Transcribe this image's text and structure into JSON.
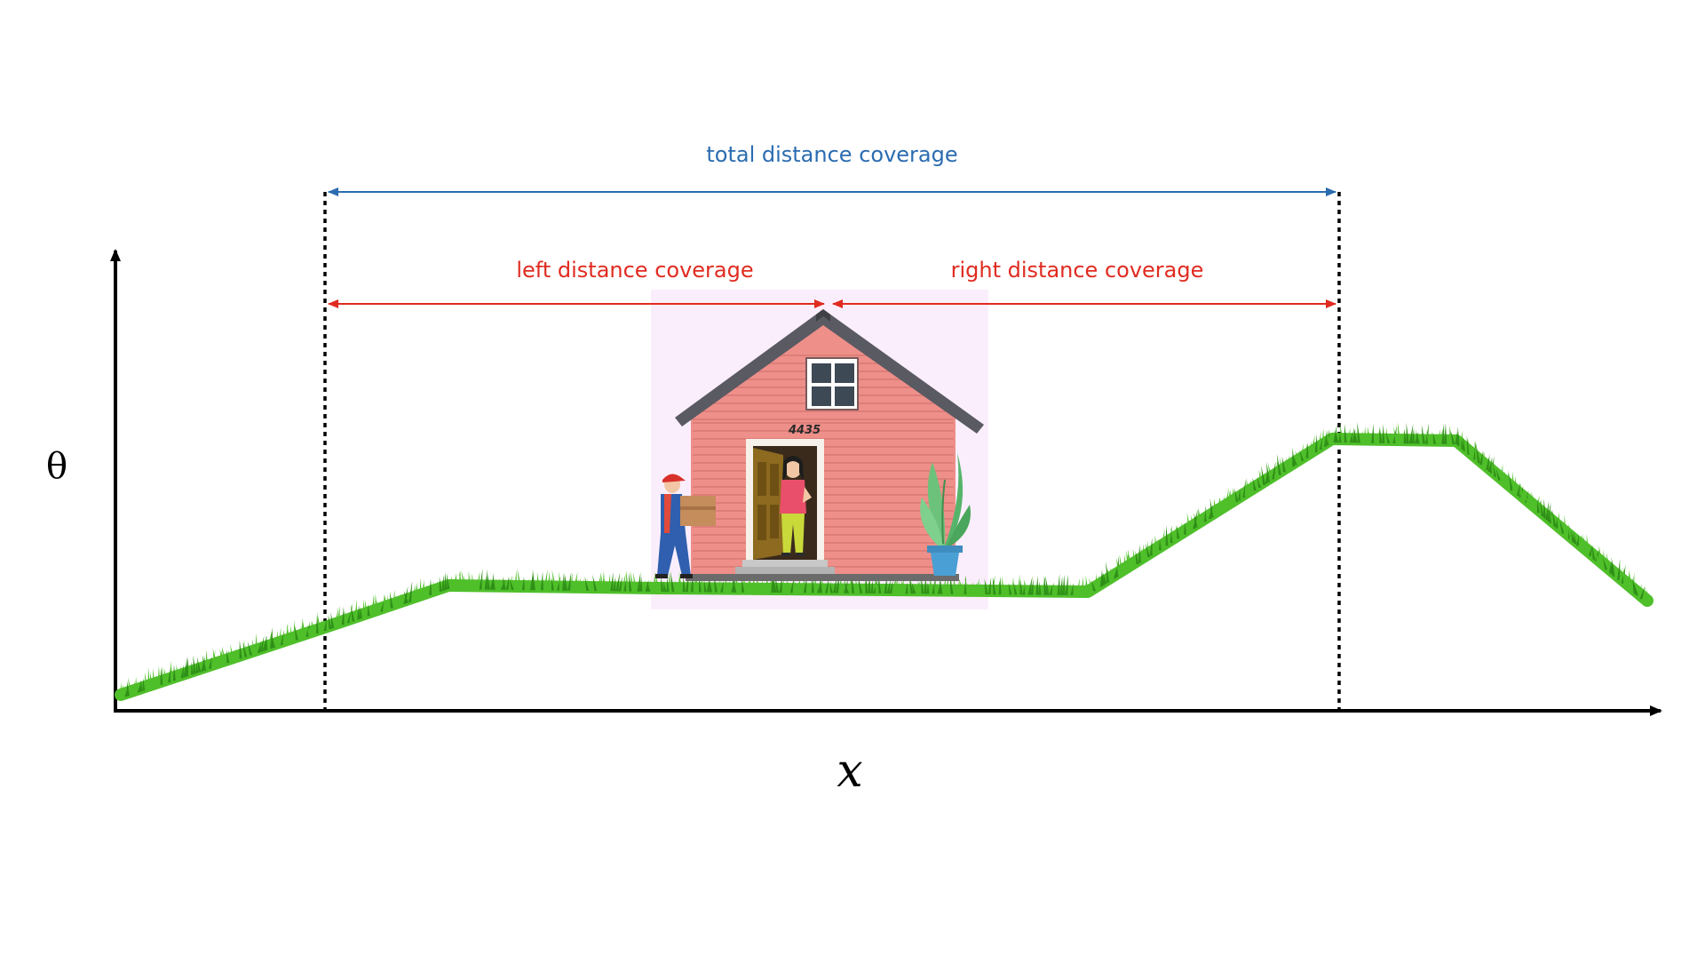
{
  "labels": {
    "total": "total distance coverage",
    "left": "left distance coverage",
    "right": "right distance coverage",
    "y_axis": "θ",
    "x_axis": "x",
    "house_number": "4435"
  },
  "colors": {
    "total_arrow": "#2b6cb0",
    "side_arrows": "#e02b20",
    "grass": "#4fbf2a",
    "grass_dark": "#2f8f17",
    "axis": "#000000",
    "house_wall": "#ee8f8a",
    "house_roof": "#5a5a62",
    "backdrop": "#fbeefc"
  },
  "icons": [
    "house-icon",
    "delivery-person-icon",
    "customer-icon",
    "potted-plant-icon"
  ]
}
